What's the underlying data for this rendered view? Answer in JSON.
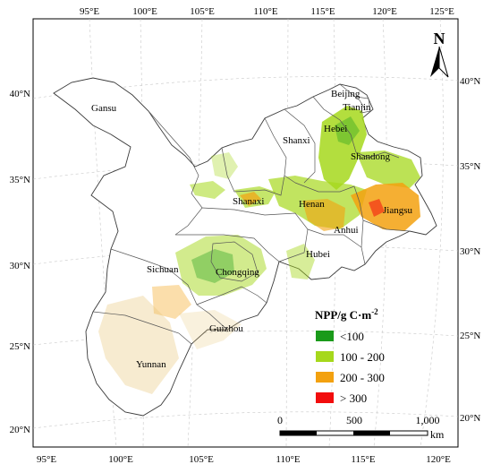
{
  "map": {
    "lon_labels": [
      "95°E",
      "100°E",
      "105°E",
      "110°E",
      "115°E",
      "120°E",
      "125°E"
    ],
    "lat_labels": [
      "20°N",
      "25°N",
      "30°N",
      "35°N",
      "40°N"
    ],
    "provinces": [
      "Gansu",
      "Beijing",
      "Tianjin",
      "Hebei",
      "Shanxi",
      "Shandong",
      "Shanaxi",
      "Henan",
      "Jiangsu",
      "Anhui",
      "Hubei",
      "Sichuan",
      "Chongqing",
      "Guizhou",
      "Yunnan"
    ],
    "north_label": "N"
  },
  "legend": {
    "title": "NPP/g C·m",
    "title_sup": "-2",
    "items": [
      {
        "label": "<100",
        "color": "#1a9a1a"
      },
      {
        "label": "100 - 200",
        "color": "#a6d81c"
      },
      {
        "label": "200 - 300",
        "color": "#f3a10f"
      },
      {
        "label": "> 300",
        "color": "#f20d0d"
      }
    ]
  },
  "scalebar": {
    "ticks": [
      "0",
      "500",
      "1,000"
    ],
    "unit": "km"
  }
}
